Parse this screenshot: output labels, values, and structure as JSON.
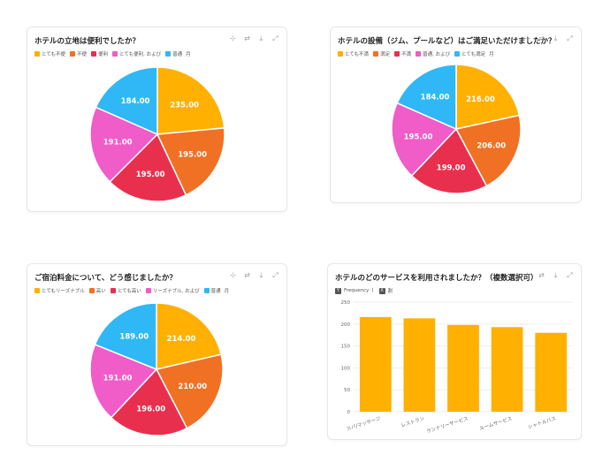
{
  "charts": [
    {
      "id": "location",
      "title": "ホテルの立地は便利でしたか？",
      "legend": [
        {
          "label": "とても不便",
          "color": "#FFB000"
        },
        {
          "label": "不便",
          "color": "#F07024"
        },
        {
          "label": "便利",
          "color": "#E8304E"
        },
        {
          "label": "とても便利, および",
          "color": "#F05CC8"
        },
        {
          "label": "普通",
          "color": "#2FB8F5"
        }
      ],
      "legend_extra": "月"
    },
    {
      "id": "facilities",
      "title": "ホテルの設備（ジム、プールなど）はご満足いただけましたか？",
      "legend": [
        {
          "label": "とても不満",
          "color": "#FFB000"
        },
        {
          "label": "満足",
          "color": "#F07024"
        },
        {
          "label": "不満",
          "color": "#E8304E"
        },
        {
          "label": "普通, および",
          "color": "#F05CC8"
        },
        {
          "label": "とても満足",
          "color": "#2FB8F5"
        }
      ],
      "legend_extra": "月"
    },
    {
      "id": "price",
      "title": "ご宿泊料金について、どう感じましたか？",
      "legend": [
        {
          "label": "とてもリーズナブル",
          "color": "#FFB000"
        },
        {
          "label": "高い",
          "color": "#F07024"
        },
        {
          "label": "とても高い",
          "color": "#E8304E"
        },
        {
          "label": "リーズナブル, および",
          "color": "#F05CC8"
        },
        {
          "label": "普通",
          "color": "#2FB8F5"
        }
      ],
      "legend_extra": "月"
    },
    {
      "id": "services",
      "title": "ホテルのどのサービスを利用されましたか？（複数選択可）",
      "legend": [
        {
          "label": "Frequency",
          "mark": "Y"
        },
        {
          "label": "割",
          "mark": "X"
        }
      ],
      "legend_sep": "("
    }
  ],
  "chart_data": [
    {
      "type": "pie",
      "title": "ホテルの立地は便利でしたか？",
      "categories": [
        "とても不便",
        "不便",
        "便利",
        "とても便利",
        "普通"
      ],
      "values": [
        235,
        195,
        195,
        191,
        184
      ],
      "labels": [
        "235.00",
        "195.00",
        "195.00",
        "191.00",
        "184.00"
      ],
      "colors": [
        "#FFB000",
        "#F07024",
        "#E8304E",
        "#F05CC8",
        "#2FB8F5"
      ]
    },
    {
      "type": "pie",
      "title": "ホテルの設備（ジム、プールなど）はご満足いただけましたか？",
      "categories": [
        "とても不満",
        "満足",
        "不満",
        "普通",
        "とても満足"
      ],
      "values": [
        216,
        206,
        199,
        195,
        184
      ],
      "labels": [
        "216.00",
        "206.00",
        "199.00",
        "195.00",
        "184.00"
      ],
      "colors": [
        "#FFB000",
        "#F07024",
        "#E8304E",
        "#F05CC8",
        "#2FB8F5"
      ]
    },
    {
      "type": "pie",
      "title": "ご宿泊料金について、どう感じましたか？",
      "categories": [
        "とてもリーズナブル",
        "高い",
        "とても高い",
        "リーズナブル",
        "普通"
      ],
      "values": [
        214,
        210,
        196,
        191,
        189
      ],
      "labels": [
        "214.00",
        "210.00",
        "196.00",
        "191.00",
        "189.00"
      ],
      "colors": [
        "#FFB000",
        "#F07024",
        "#E8304E",
        "#F05CC8",
        "#2FB8F5"
      ]
    },
    {
      "type": "bar",
      "title": "ホテルのどのサービスを利用されましたか？（複数選択可）",
      "categories": [
        "スパ/マッサージ",
        "レストラン",
        "ランドリーサービス",
        "ルームサービス",
        "シャトルバス"
      ],
      "values": [
        216,
        213,
        198,
        193,
        180
      ],
      "ylim": [
        0,
        250
      ],
      "yticks": [
        "0",
        "50",
        "100",
        "150",
        "200",
        "250"
      ],
      "color": "#FFB000",
      "grid": true
    }
  ]
}
